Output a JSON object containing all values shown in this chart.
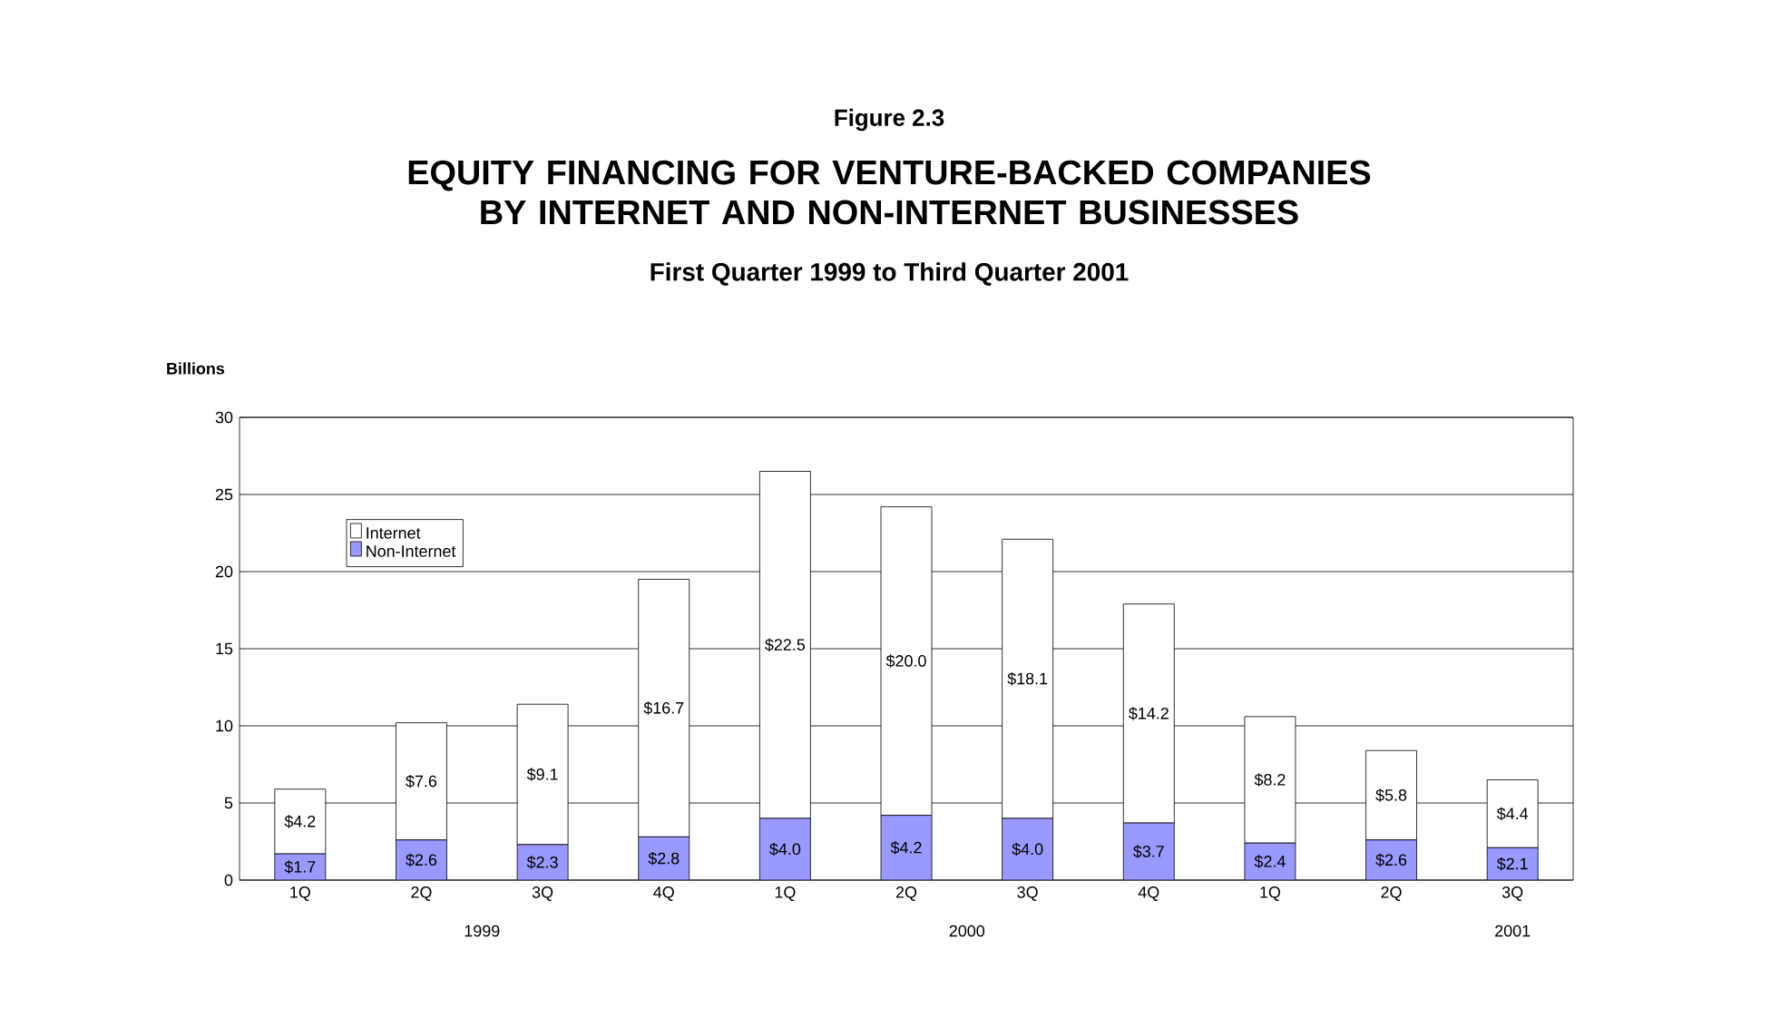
{
  "chart_data": {
    "type": "bar",
    "stacked": true,
    "title": "EQUITY FINANCING FOR VENTURE-BACKED COMPANIES BY INTERNET AND NON-INTERNET BUSINESSES",
    "subtitle": "First Quarter 1999 to Third Quarter 2001",
    "ylabel": "Billions",
    "annotations": [
      "Figure 2.3",
      "1999",
      "2000",
      "2001"
    ],
    "categories": [
      "1Q",
      "2Q",
      "3Q",
      "4Q",
      "1Q",
      "2Q",
      "3Q",
      "4Q",
      "1Q",
      "2Q",
      "3Q"
    ],
    "series": [
      {
        "name": "Non-Internet",
        "color": "#9999ff",
        "values": [
          1.7,
          2.6,
          2.3,
          2.8,
          4.0,
          4.2,
          4.0,
          3.7,
          2.4,
          2.6,
          2.1
        ],
        "value_labels": [
          "$1.7",
          "$2.6",
          "$2.3",
          "$2.8",
          "$4.0",
          "$4.2",
          "$4.0",
          "$3.7",
          "$2.4",
          "$2.6",
          "$2.1"
        ]
      },
      {
        "name": "Internet",
        "color": "#ffffff",
        "values": [
          4.2,
          7.6,
          9.1,
          16.7,
          22.5,
          20.0,
          18.1,
          14.2,
          8.2,
          5.8,
          4.4
        ],
        "value_labels": [
          "$4.2",
          "$7.6",
          "$9.1",
          "$16.7",
          "$22.5",
          "$20.0",
          "$18.1",
          "$14.2",
          "$8.2",
          "$5.8",
          "$4.4"
        ]
      }
    ],
    "ylim": [
      0,
      30
    ],
    "yticks": [
      0,
      5,
      10,
      15,
      20,
      25,
      30
    ],
    "grid": "y",
    "legend": "top left"
  }
}
